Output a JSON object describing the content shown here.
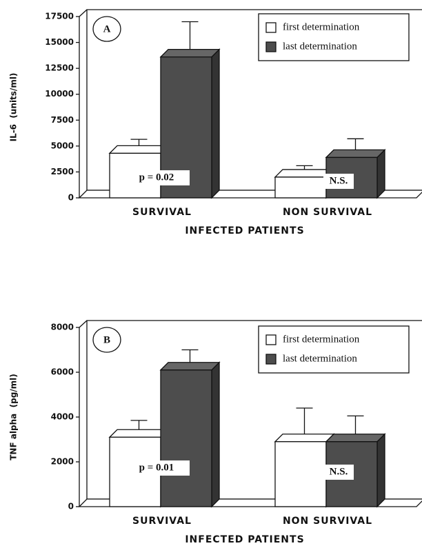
{
  "chart_data": [
    {
      "type": "bar",
      "panel": "A",
      "xlabel": "INFECTED PATIENTS",
      "ylabel": "IL-6  (units/ml)",
      "categories": [
        "SURVIVAL",
        "NON SURVIVAL"
      ],
      "series": [
        {
          "name": "first determination",
          "color": "#ffffff",
          "values": [
            4300,
            2000
          ],
          "errors": [
            1350,
            1100
          ]
        },
        {
          "name": "last determination",
          "color": "#4d4d4d",
          "values": [
            13600,
            3900
          ],
          "errors": [
            3400,
            1800
          ]
        }
      ],
      "annotations": [
        "p  =  0.02",
        "N.S."
      ],
      "ylim": [
        0,
        17500
      ],
      "yticks": [
        0,
        2500,
        5000,
        7500,
        10000,
        12500,
        15000,
        17500
      ]
    },
    {
      "type": "bar",
      "panel": "B",
      "xlabel": "INFECTED PATIENTS",
      "ylabel": "TNF alpha  (pg/ml)",
      "categories": [
        "SURVIVAL",
        "NON SURVIVAL"
      ],
      "series": [
        {
          "name": "first determination",
          "color": "#ffffff",
          "values": [
            3100,
            2900
          ],
          "errors": [
            750,
            1500
          ]
        },
        {
          "name": "last determination",
          "color": "#4d4d4d",
          "values": [
            6100,
            2900
          ],
          "errors": [
            900,
            1150
          ]
        }
      ],
      "annotations": [
        "p  =  0.01",
        "N.S."
      ],
      "ylim": [
        0,
        8000
      ],
      "yticks": [
        0,
        2000,
        4000,
        6000,
        8000
      ]
    }
  ]
}
